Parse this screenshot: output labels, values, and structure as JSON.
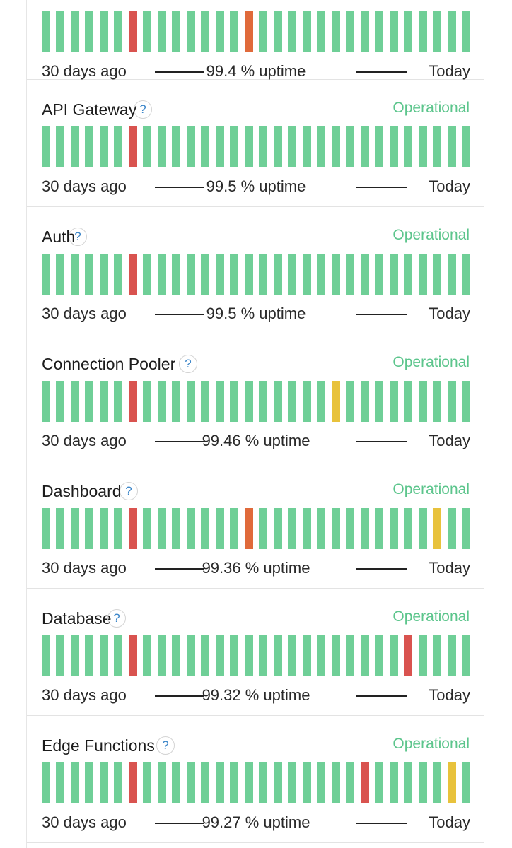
{
  "colors": {
    "operational": "#6fcf97",
    "status_text": "#5cc58c",
    "major_outage": "#d9534f",
    "partial_outage": "#e06a3b",
    "degraded": "#e8c23c"
  },
  "icons": {
    "help": "question-mark-circle-icon"
  },
  "components": [
    {
      "name": "",
      "status": "",
      "has_help": false,
      "days": [
        "op",
        "op",
        "op",
        "op",
        "op",
        "op",
        "maj",
        "op",
        "op",
        "op",
        "op",
        "op",
        "op",
        "op",
        "part",
        "op",
        "op",
        "op",
        "op",
        "op",
        "op",
        "op",
        "op",
        "op",
        "op",
        "op",
        "op",
        "op",
        "op",
        "op"
      ],
      "start_label": "30 days ago",
      "uptime_label": "99.4 % uptime",
      "end_label": "Today"
    },
    {
      "name": "API Gateway",
      "status": "Operational",
      "has_help": true,
      "help_label": "?",
      "days": [
        "op",
        "op",
        "op",
        "op",
        "op",
        "op",
        "maj",
        "op",
        "op",
        "op",
        "op",
        "op",
        "op",
        "op",
        "op",
        "op",
        "op",
        "op",
        "op",
        "op",
        "op",
        "op",
        "op",
        "op",
        "op",
        "op",
        "op",
        "op",
        "op",
        "op"
      ],
      "start_label": "30 days ago",
      "uptime_label": "99.5 % uptime",
      "end_label": "Today"
    },
    {
      "name": "Auth",
      "status": "Operational",
      "has_help": true,
      "help_label": "?",
      "days": [
        "op",
        "op",
        "op",
        "op",
        "op",
        "op",
        "maj",
        "op",
        "op",
        "op",
        "op",
        "op",
        "op",
        "op",
        "op",
        "op",
        "op",
        "op",
        "op",
        "op",
        "op",
        "op",
        "op",
        "op",
        "op",
        "op",
        "op",
        "op",
        "op",
        "op"
      ],
      "start_label": "30 days ago",
      "uptime_label": "99.5 % uptime",
      "end_label": "Today"
    },
    {
      "name": "Connection Pooler",
      "status": "Operational",
      "has_help": true,
      "help_label": "?",
      "days": [
        "op",
        "op",
        "op",
        "op",
        "op",
        "op",
        "maj",
        "op",
        "op",
        "op",
        "op",
        "op",
        "op",
        "op",
        "op",
        "op",
        "op",
        "op",
        "op",
        "op",
        "deg",
        "op",
        "op",
        "op",
        "op",
        "op",
        "op",
        "op",
        "op",
        "op"
      ],
      "start_label": "30 days ago",
      "uptime_label": "99.46 % uptime",
      "end_label": "Today"
    },
    {
      "name": "Dashboard",
      "status": "Operational",
      "has_help": true,
      "help_label": "?",
      "days": [
        "op",
        "op",
        "op",
        "op",
        "op",
        "op",
        "maj",
        "op",
        "op",
        "op",
        "op",
        "op",
        "op",
        "op",
        "part",
        "op",
        "op",
        "op",
        "op",
        "op",
        "op",
        "op",
        "op",
        "op",
        "op",
        "op",
        "op",
        "deg",
        "op",
        "op"
      ],
      "start_label": "30 days ago",
      "uptime_label": "99.36 % uptime",
      "end_label": "Today"
    },
    {
      "name": "Database",
      "status": "Operational",
      "has_help": true,
      "help_label": "?",
      "days": [
        "op",
        "op",
        "op",
        "op",
        "op",
        "op",
        "maj",
        "op",
        "op",
        "op",
        "op",
        "op",
        "op",
        "op",
        "op",
        "op",
        "op",
        "op",
        "op",
        "op",
        "op",
        "op",
        "op",
        "op",
        "op",
        "maj",
        "op",
        "op",
        "op",
        "op"
      ],
      "start_label": "30 days ago",
      "uptime_label": "99.32 % uptime",
      "end_label": "Today"
    },
    {
      "name": "Edge Functions",
      "status": "Operational",
      "has_help": true,
      "help_label": "?",
      "days": [
        "op",
        "op",
        "op",
        "op",
        "op",
        "op",
        "maj",
        "op",
        "op",
        "op",
        "op",
        "op",
        "op",
        "op",
        "op",
        "op",
        "op",
        "op",
        "op",
        "op",
        "op",
        "op",
        "maj",
        "op",
        "op",
        "op",
        "op",
        "op",
        "deg",
        "op"
      ],
      "start_label": "30 days ago",
      "uptime_label": "99.27 % uptime",
      "end_label": "Today"
    }
  ]
}
